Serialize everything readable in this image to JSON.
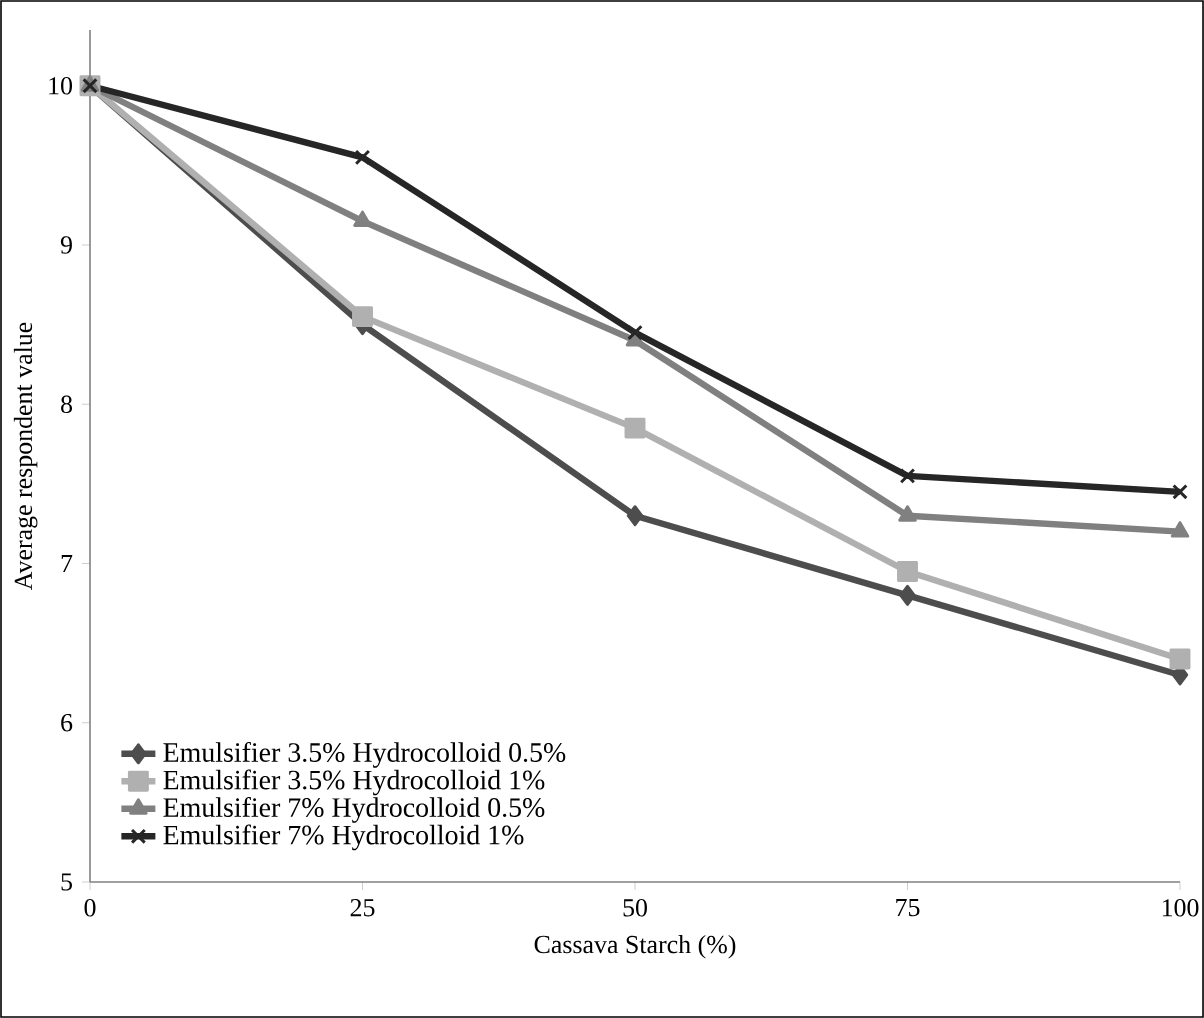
{
  "chart_data": {
    "type": "line",
    "xlabel": "Cassava Starch (%)",
    "ylabel": "Average respondent value",
    "categories": [
      "0",
      "25",
      "50",
      "75",
      "100"
    ],
    "ylim": [
      5,
      10.35
    ],
    "yticks": [
      5,
      6,
      7,
      8,
      9,
      10
    ],
    "legend": "bottom left",
    "series": [
      {
        "name": "Emulsifier 3.5% Hydrocolloid 0.5%",
        "color": "#4d4d4d",
        "marker": "diamond",
        "values": [
          10,
          8.5,
          7.3,
          6.8,
          6.3
        ]
      },
      {
        "name": "Emulsifier 3.5% Hydrocolloid 1%",
        "color": "#b0b0b0",
        "marker": "square",
        "values": [
          10,
          8.55,
          7.85,
          6.95,
          6.4
        ]
      },
      {
        "name": "Emulsifier 7% Hydrocolloid 0.5%",
        "color": "#808080",
        "marker": "triangle",
        "values": [
          10,
          9.15,
          8.4,
          7.3,
          7.2
        ]
      },
      {
        "name": "Emulsifier 7% Hydrocolloid 1%",
        "color": "#262626",
        "marker": "cross",
        "values": [
          10,
          9.55,
          8.45,
          7.55,
          7.45
        ]
      }
    ]
  }
}
